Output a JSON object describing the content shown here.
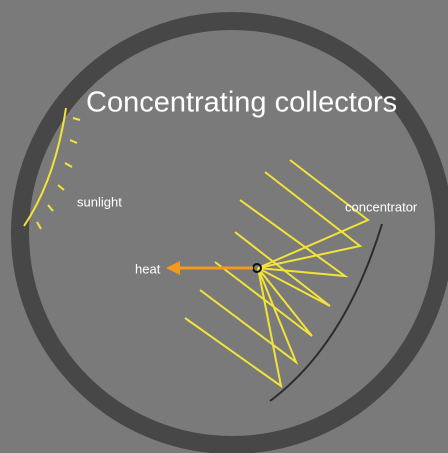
{
  "title": "Concentrating collectors",
  "labels": {
    "sunlight": "sunlight",
    "concentrator": "concentrator",
    "heat": "heat"
  }
}
